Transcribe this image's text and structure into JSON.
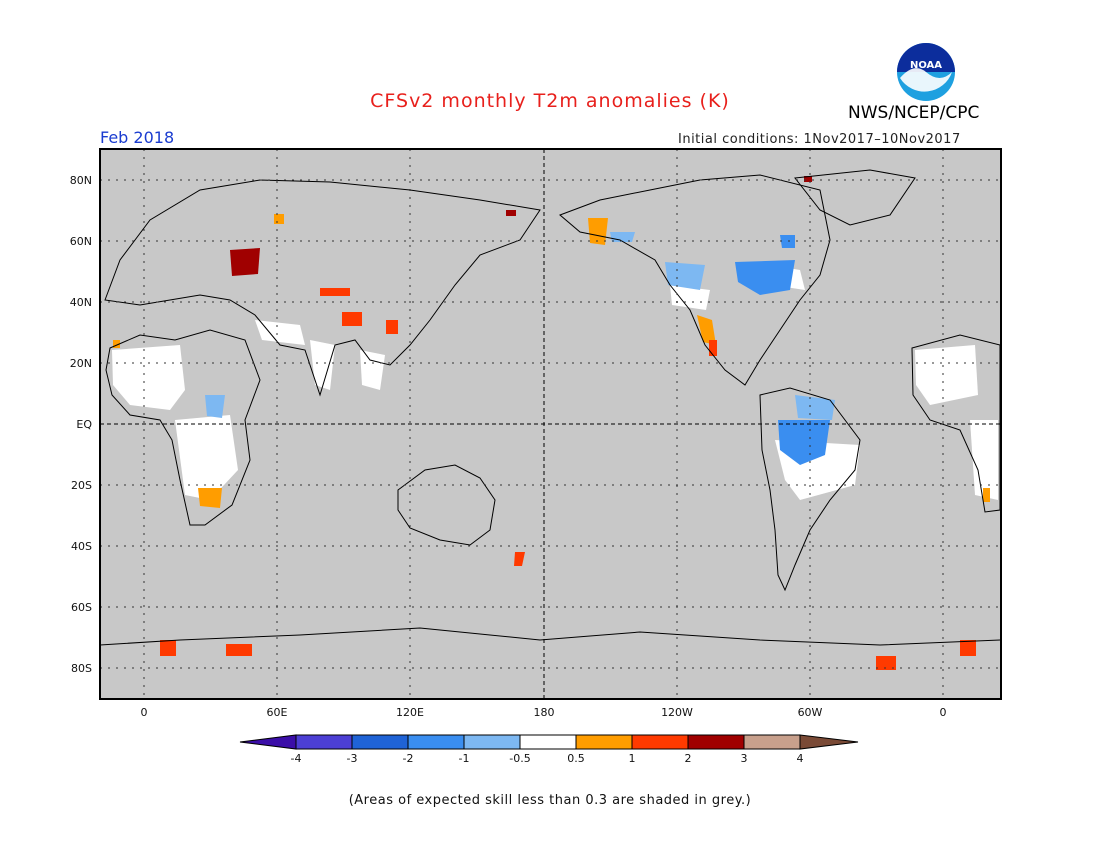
{
  "header": {
    "title": "CFSv2 monthly T2m anomalies (K)",
    "org": "NWS/NCEP/CPC",
    "logo_text": "NOAA",
    "period": "Feb 2018",
    "initial_conditions": "Initial conditions: 1Nov2017–10Nov2017"
  },
  "axes": {
    "lat_labels": [
      "80N",
      "60N",
      "40N",
      "20N",
      "EQ",
      "20S",
      "40S",
      "60S",
      "80S"
    ],
    "lon_labels": [
      "0",
      "60E",
      "120E",
      "180",
      "120W",
      "60W",
      "0"
    ]
  },
  "colorbar": {
    "labels": [
      "-4",
      "-3",
      "-2",
      "-1",
      "-0.5",
      "0.5",
      "1",
      "2",
      "3",
      "4"
    ],
    "colors": [
      "#3b0ea8",
      "#4c3fd4",
      "#1f63d6",
      "#3a8ef0",
      "#7db8f2",
      "#ffffff",
      "#ff9d00",
      "#ff3a00",
      "#a00000",
      "#c8a08c",
      "#7a4a36"
    ]
  },
  "map": {
    "background_color": "#c8c8c8",
    "no_anomaly_color": "#ffffff"
  },
  "footnote": "(Areas of expected skill less than 0.3 are shaded in grey.)"
}
